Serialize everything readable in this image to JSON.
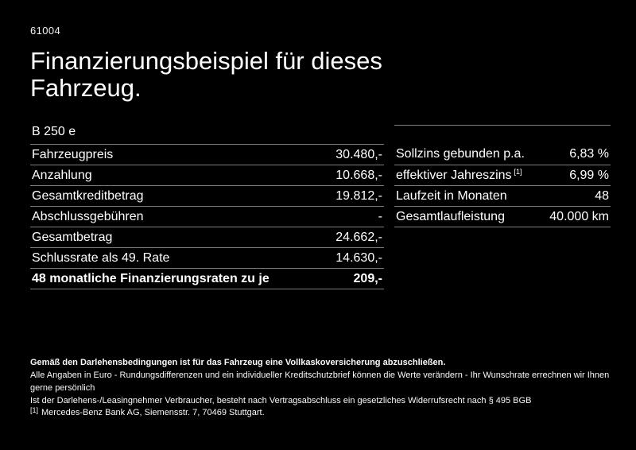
{
  "page": {
    "code": "61004",
    "title": "Finanzierungsbeispiel für dieses Fahrzeug.",
    "model": "B 250 e"
  },
  "finance_table": {
    "rows": [
      {
        "label": "Fahrzeugpreis",
        "value": "30.480,-"
      },
      {
        "label": "Anzahlung",
        "value": "10.668,-"
      },
      {
        "label": "Gesamtkreditbetrag",
        "value": "19.812,-"
      },
      {
        "label": "Abschlussgebühren",
        "value": "-"
      },
      {
        "label": "Gesamtbetrag",
        "value": "24.662,-"
      },
      {
        "label": "Schlussrate als 49. Rate",
        "value": "14.630,-"
      }
    ],
    "highlight_row": {
      "label": "48 monatliche Finanzierungsraten zu je",
      "value": "209,-"
    }
  },
  "conditions_table": {
    "rows": [
      {
        "label": "Sollzins gebunden p.a.",
        "sup": "",
        "value": "6,83 %"
      },
      {
        "label": "effektiver Jahreszins",
        "sup": "[1]",
        "value": "6,99 %"
      },
      {
        "label": "Laufzeit in Monaten",
        "sup": "",
        "value": "48"
      },
      {
        "label": "Gesamtlaufleistung",
        "sup": "",
        "value": "40.000 km"
      }
    ]
  },
  "legal": {
    "bold_note": "Gemäß den Darlehensbedingungen ist für das Fahrzeug eine Vollkaskoversicherung abzuschließen.",
    "note_line_1": "Alle Angaben in Euro - Rundungsdifferenzen und ein individueller Kreditschutzbrief können die Werte verändern - Ihr Wunschrate errechnen wir Ihnen gerne persönlich",
    "note_line_2": "Ist der Darlehens-/Leasingnehmer Verbraucher, besteht nach Vertragsabschluss ein gesetzliches Widerrufsrecht nach § 495 BGB",
    "reference_sup": "[1]",
    "reference_text": "Mercedes-Benz Bank AG, Siemensstr. 7, 70469 Stuttgart."
  },
  "colors": {
    "background": "#000000",
    "text": "#ffffff",
    "divider": "#7d7d7d"
  }
}
